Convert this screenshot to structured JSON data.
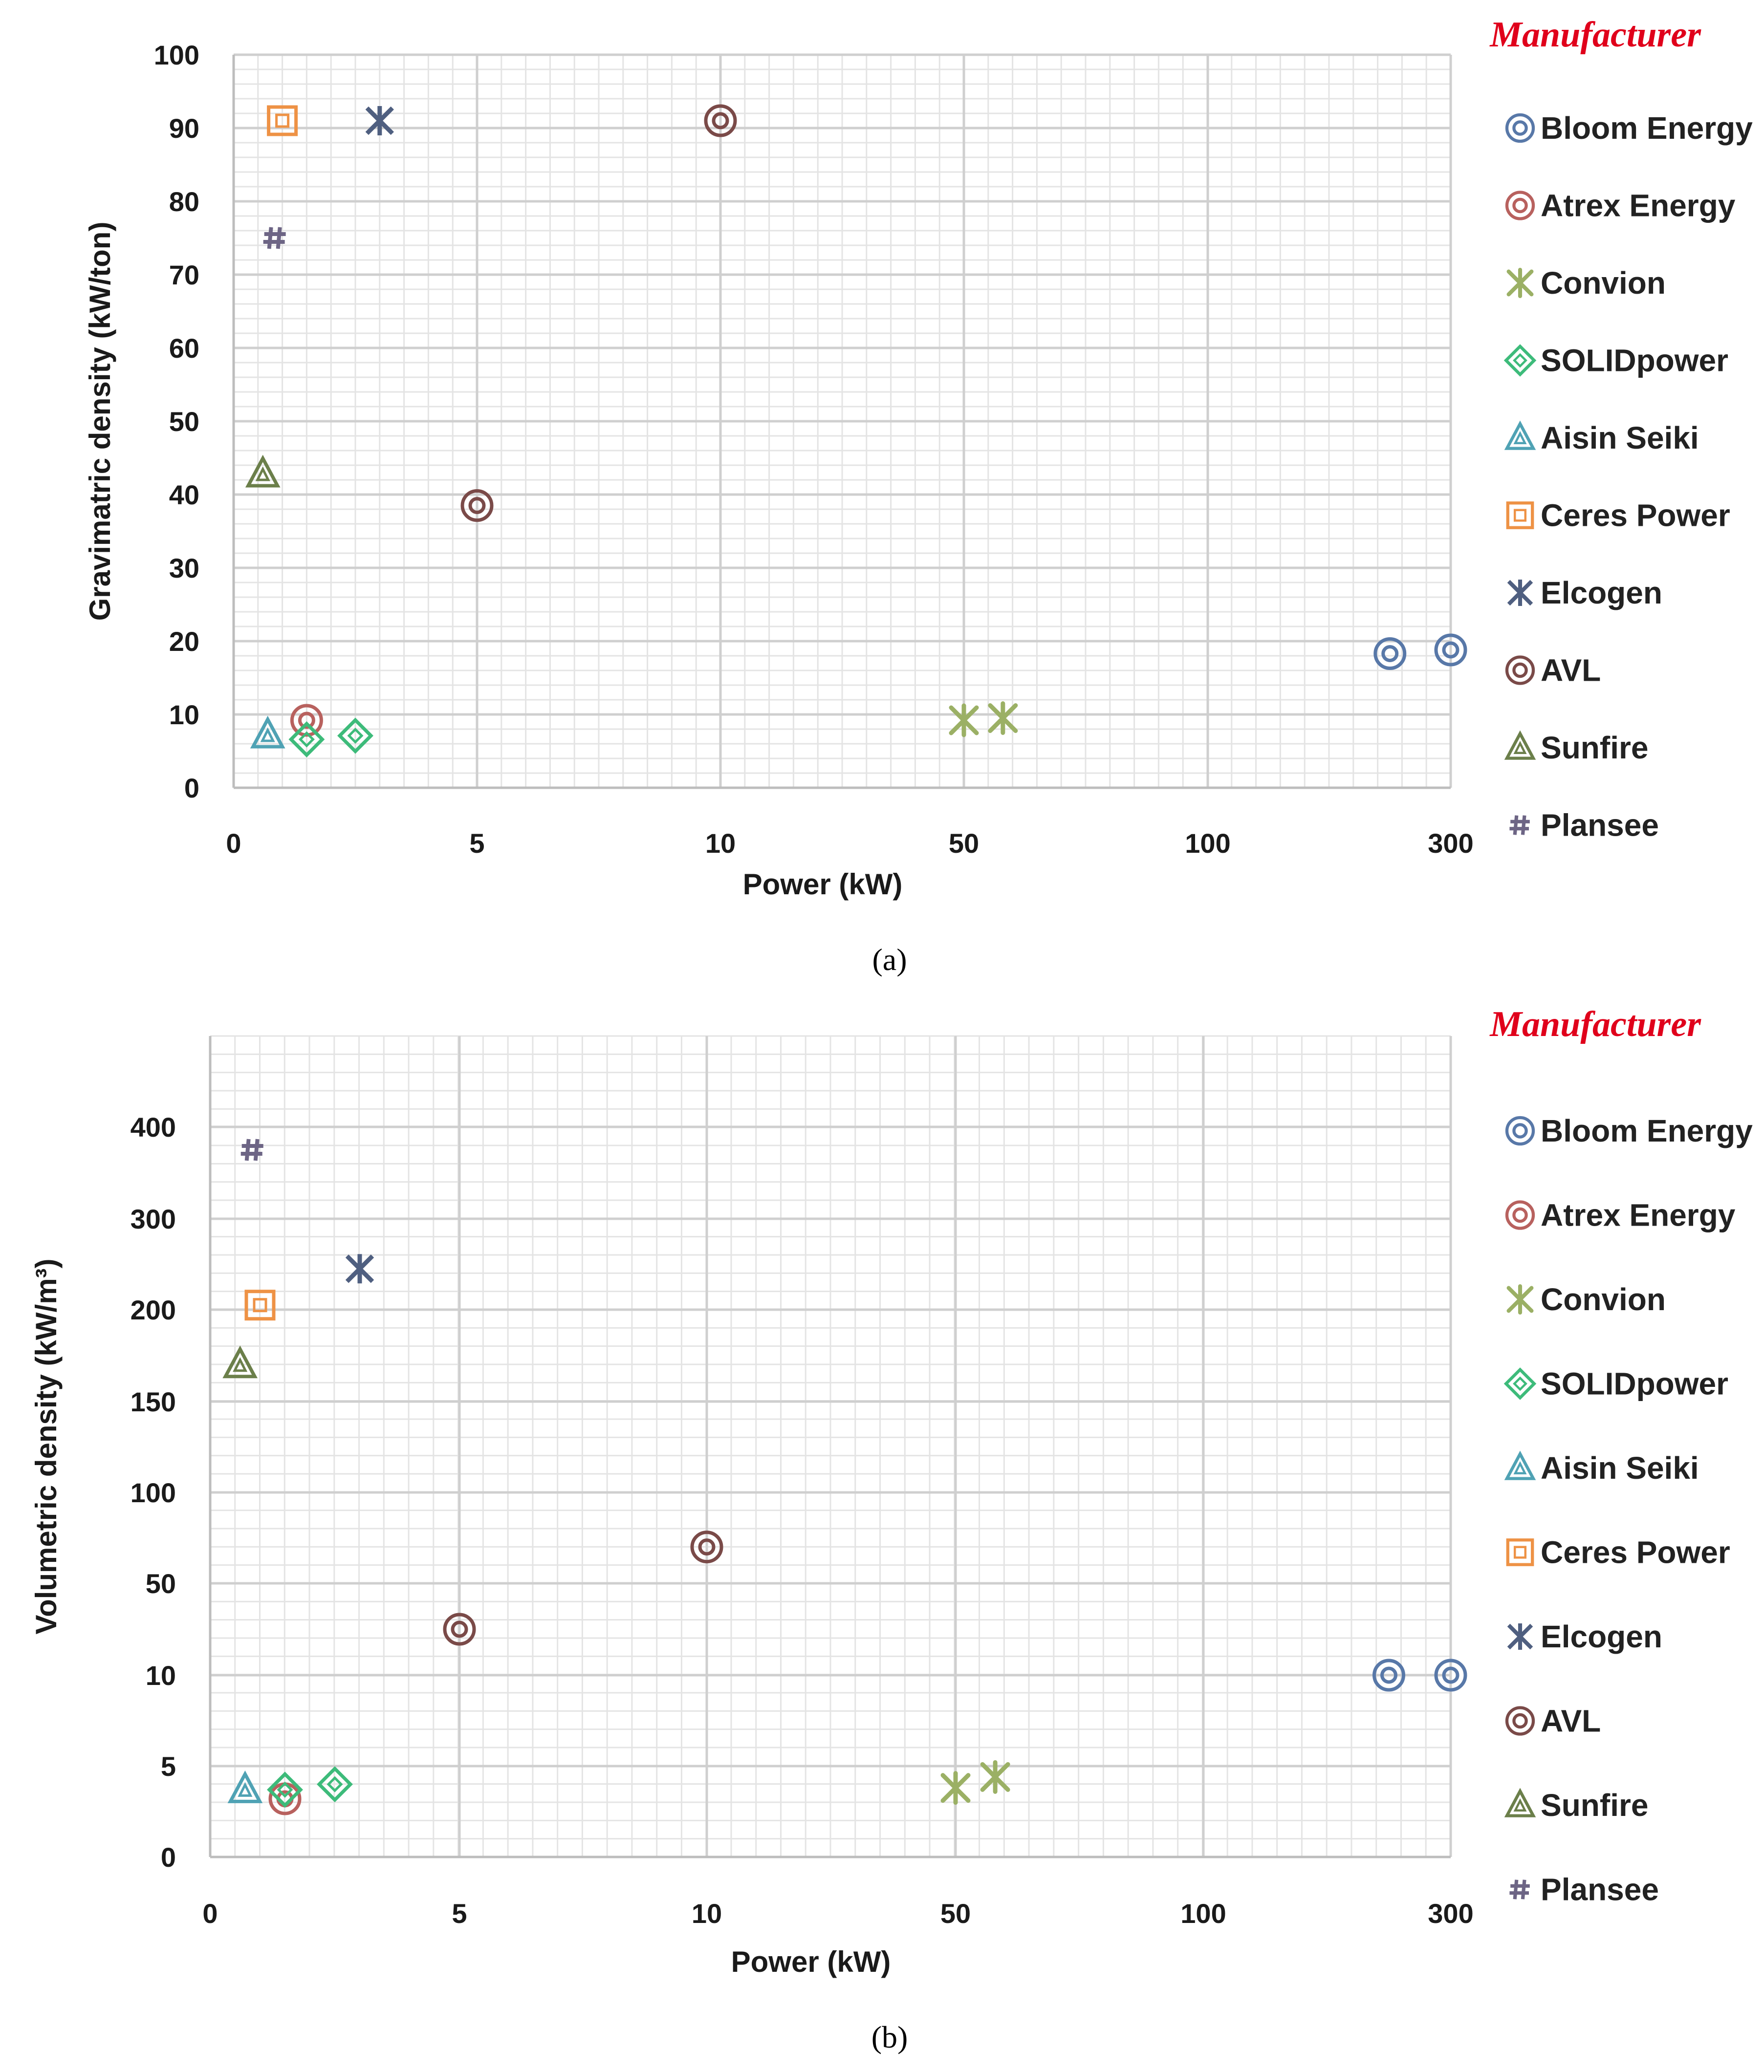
{
  "colors": {
    "legend_title": "#e0001b",
    "Bloom Energy": "#5878a8",
    "Atrex Energy": "#b8615e",
    "Convion": "#9bb065",
    "SOLIDpower": "#3dbb7a",
    "Aisin Seiki": "#4fa2b4",
    "Ceres Power": "#ee9245",
    "Elcogen": "#4f5f80",
    "AVL": "#7a4a48",
    "Sunfire": "#6b7f4a",
    "Plansee": "#6d6585"
  },
  "markers": {
    "Bloom Energy": "double-circle",
    "Atrex Energy": "double-circle",
    "Convion": "asterisk",
    "SOLIDpower": "double-diamond",
    "Aisin Seiki": "double-triangle",
    "Ceres Power": "double-square",
    "Elcogen": "x-cross",
    "AVL": "double-circle",
    "Sunfire": "double-triangle",
    "Plansee": "hash"
  },
  "chart_data": [
    {
      "id": "a",
      "type": "scatter",
      "caption": "(a)",
      "xlabel": "Power (kW)",
      "ylabel": "Gravimatric density (kW/ton)",
      "x_scale": "piecewise-categorical",
      "x_ticks": [
        "0",
        "5",
        "10",
        "50",
        "100",
        "300"
      ],
      "y_ticks": [
        "0",
        "10",
        "20",
        "30",
        "40",
        "50",
        "60",
        "70",
        "80",
        "90",
        "100"
      ],
      "ylim": [
        0,
        100
      ],
      "legend_title": "Manufacturer",
      "legend": [
        "Bloom Energy",
        "Atrex Energy",
        "Convion",
        "SOLIDpower",
        "Aisin Seiki",
        "Ceres Power",
        "Elcogen",
        "AVL",
        "Sunfire",
        "Plansee"
      ],
      "series": [
        {
          "name": "Bloom Energy",
          "points": [
            [
              250,
              18.3
            ],
            [
              300,
              18.8
            ]
          ]
        },
        {
          "name": "Atrex Energy",
          "points": [
            [
              1.5,
              9.2
            ]
          ]
        },
        {
          "name": "Convion",
          "points": [
            [
              50,
              9.2
            ],
            [
              58,
              9.5
            ]
          ]
        },
        {
          "name": "SOLIDpower",
          "points": [
            [
              1.5,
              6.6
            ],
            [
              2.5,
              7.1
            ]
          ]
        },
        {
          "name": "Aisin Seiki",
          "points": [
            [
              0.7,
              7.2
            ]
          ]
        },
        {
          "name": "Ceres Power",
          "points": [
            [
              1,
              91
            ]
          ]
        },
        {
          "name": "Elcogen",
          "points": [
            [
              3,
              91
            ]
          ]
        },
        {
          "name": "AVL",
          "points": [
            [
              5,
              38.5
            ],
            [
              10,
              91
            ]
          ]
        },
        {
          "name": "Sunfire",
          "points": [
            [
              0.6,
              42.8
            ]
          ]
        },
        {
          "name": "Plansee",
          "points": [
            [
              0.85,
              75
            ]
          ]
        }
      ]
    },
    {
      "id": "b",
      "type": "scatter",
      "caption": "(b)",
      "xlabel": "Power (kW)",
      "ylabel": "Volumetric density (kW/m³)",
      "x_scale": "piecewise-categorical",
      "x_ticks": [
        "0",
        "5",
        "10",
        "50",
        "100",
        "300"
      ],
      "y_scale": "piecewise-categorical",
      "y_ticks": [
        "0",
        "5",
        "10",
        "50",
        "100",
        "150",
        "200",
        "300",
        "400"
      ],
      "legend_title": "Manufacturer",
      "legend": [
        "Bloom Energy",
        "Atrex Energy",
        "Convion",
        "SOLIDpower",
        "Aisin Seiki",
        "Ceres Power",
        "Elcogen",
        "AVL",
        "Sunfire",
        "Plansee"
      ],
      "series": [
        {
          "name": "Bloom Energy",
          "points": [
            [
              250,
              10
            ],
            [
              300,
              10
            ]
          ]
        },
        {
          "name": "Atrex Energy",
          "points": [
            [
              1.5,
              3.2
            ]
          ]
        },
        {
          "name": "Convion",
          "points": [
            [
              50,
              3.8
            ],
            [
              58,
              4.4
            ]
          ]
        },
        {
          "name": "SOLIDpower",
          "points": [
            [
              1.5,
              3.7
            ],
            [
              2.5,
              4
            ]
          ]
        },
        {
          "name": "Aisin Seiki",
          "points": [
            [
              0.7,
              3.7
            ]
          ]
        },
        {
          "name": "Ceres Power",
          "points": [
            [
              1,
              205
            ]
          ]
        },
        {
          "name": "Elcogen",
          "points": [
            [
              3,
              245
            ]
          ]
        },
        {
          "name": "AVL",
          "points": [
            [
              5,
              30
            ],
            [
              10,
              70
            ]
          ]
        },
        {
          "name": "Sunfire",
          "points": [
            [
              0.6,
              170
            ]
          ]
        },
        {
          "name": "Plansee",
          "points": [
            [
              0.85,
              375
            ]
          ]
        }
      ]
    }
  ]
}
